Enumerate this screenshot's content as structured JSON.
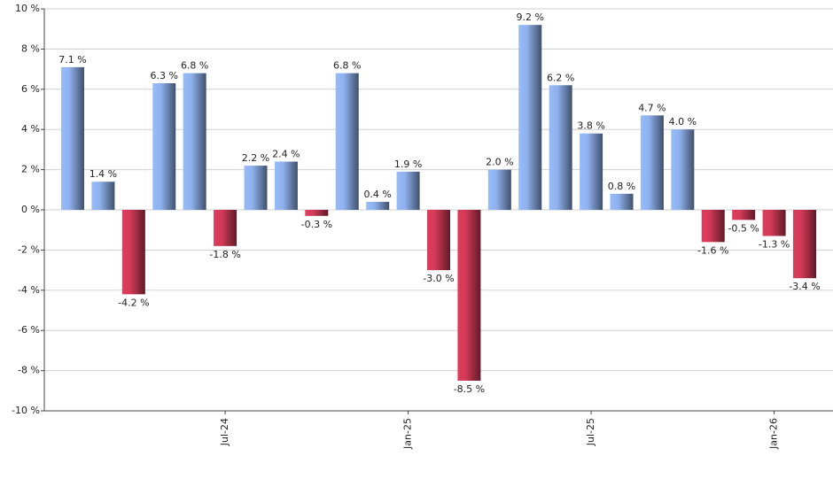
{
  "chart_data": {
    "type": "bar",
    "categories": [
      null,
      null,
      null,
      null,
      null,
      "Jul-24",
      null,
      null,
      null,
      null,
      null,
      "Jan-25",
      null,
      null,
      null,
      null,
      null,
      "Jul-25",
      null,
      null,
      null,
      null,
      null,
      "Jan-26",
      null
    ],
    "values": [
      7.1,
      1.4,
      -4.2,
      6.3,
      6.8,
      -1.8,
      2.2,
      2.4,
      -0.3,
      6.8,
      0.4,
      1.9,
      -3.0,
      -8.5,
      2.0,
      9.2,
      6.2,
      3.8,
      0.8,
      4.7,
      4.0,
      -1.6,
      -0.5,
      -1.3,
      -3.4
    ],
    "value_labels": [
      "7.1 %",
      "1.4 %",
      "-4.2 %",
      "6.3 %",
      "6.8 %",
      "-1.8 %",
      "2.2 %",
      "2.4 %",
      "-0.3 %",
      "6.8 %",
      "0.4 %",
      "1.9 %",
      "-3.0 %",
      "-8.5 %",
      "2.0 %",
      "9.2 %",
      "6.2 %",
      "3.8 %",
      "0.8 %",
      "4.7 %",
      "4.0 %",
      "-1.6 %",
      "-0.5 %",
      "-1.3 %",
      "-3.4 %"
    ],
    "color_positive": "#8fb2ee",
    "color_negative": "#d23a57",
    "ylim": [
      -10,
      10
    ],
    "yticks": [
      {
        "value": -10,
        "label": "-10 %"
      },
      {
        "value": -8,
        "label": "-8 %"
      },
      {
        "value": -6,
        "label": "-6 %"
      },
      {
        "value": -4,
        "label": "-4 %"
      },
      {
        "value": -2,
        "label": "-2 %"
      },
      {
        "value": 0,
        "label": "0 %"
      },
      {
        "value": 2,
        "label": "2 %"
      },
      {
        "value": 4,
        "label": "4 %"
      },
      {
        "value": 6,
        "label": "6 %"
      },
      {
        "value": 8,
        "label": "8 %"
      },
      {
        "value": 10,
        "label": "10 %"
      }
    ],
    "grid": true
  }
}
